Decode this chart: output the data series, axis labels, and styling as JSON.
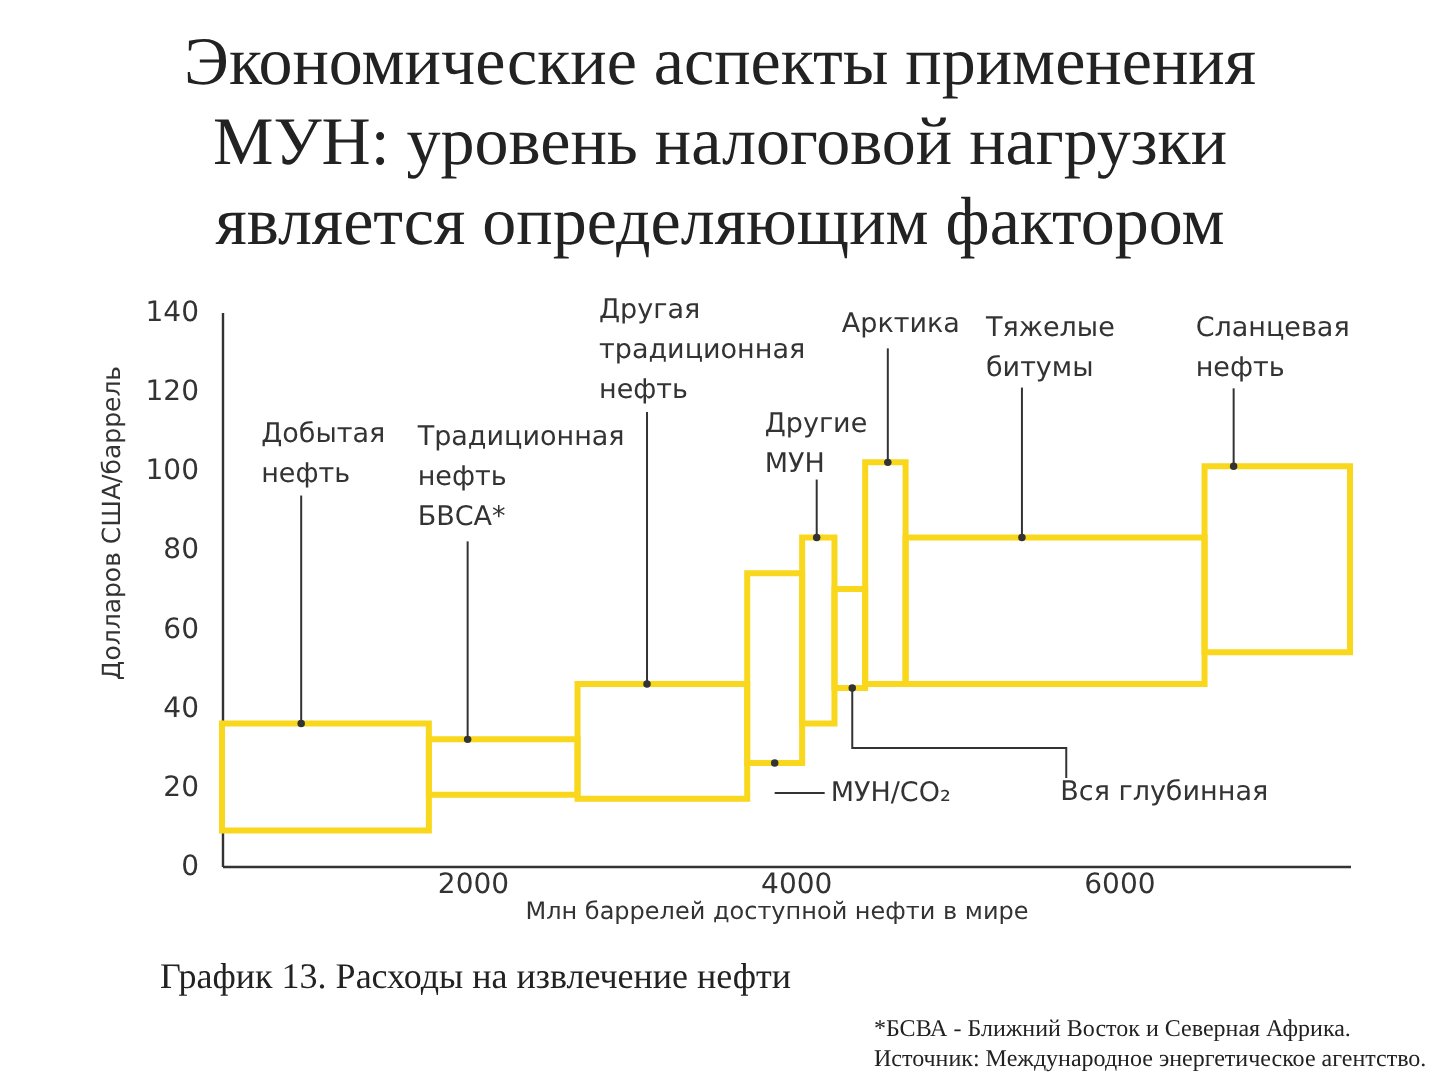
{
  "chart_data": {
    "type": "histogram",
    "title": "Экономические аспекты применения\nМУН: уровень налоговой нагрузки\nявляется определяющим фактором",
    "xlabel": "Млн баррелей доступной нефти в мире",
    "ylabel": "Долларов США/баррель",
    "bins": [
      450,
      1730,
      2650,
      3700,
      4040,
      4240,
      4430,
      4680,
      6530,
      7430
    ],
    "values": [
      27,
      14,
      29,
      48,
      47,
      25,
      56,
      37,
      47
    ],
    "base": [
      9,
      18,
      17,
      26,
      36,
      45,
      46,
      46,
      54
    ],
    "color": "#f9d71c",
    "xlim": [
      450,
      7430
    ],
    "xticks": [
      2000,
      4000,
      6000
    ],
    "ylim": [
      0,
      140
    ],
    "yticks": [
      0,
      20,
      40,
      60,
      80,
      100,
      120,
      140
    ],
    "annotations": [
      {
        "text": "Добытая\nнефть",
        "x": 940,
        "y": 36
      },
      {
        "text": "Традиционная\nнефть\nБВСА*",
        "x": 1970,
        "y": 32
      },
      {
        "text": "Другая\nтрадиционная\nнефть",
        "x": 3080,
        "y": 46
      },
      {
        "text": "МУН/CO₂",
        "x": 3870,
        "y": 26
      },
      {
        "text": "Другие\nМУН",
        "x": 4130,
        "y": 83
      },
      {
        "text": "Вся глубинная",
        "x": 4350,
        "y": 45
      },
      {
        "text": "Арктика",
        "x": 4570,
        "y": 102
      },
      {
        "text": "Тяжелые\nбитумы",
        "x": 5400,
        "y": 83
      },
      {
        "text": "Сланцевая\nнефть",
        "x": 6710,
        "y": 101
      },
      "График 13. Расходы на извлечение нефти",
      "*БСВА - Ближний Восток и Северная Африка.",
      "Источник: Международное энергетическое агентство."
    ]
  }
}
